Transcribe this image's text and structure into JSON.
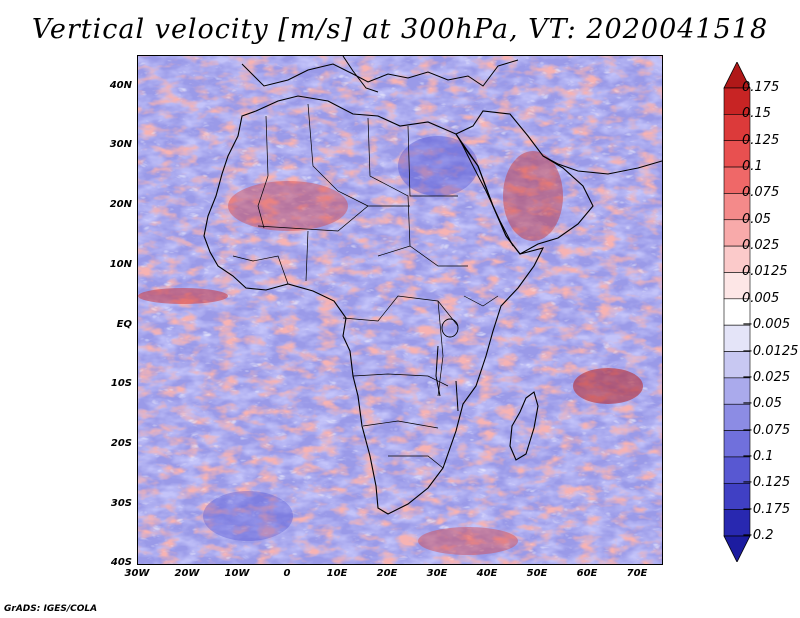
{
  "title": "Vertical velocity [m/s] at 300hPa, VT: 2020041518",
  "map": {
    "lat_labels": [
      "40N",
      "30N",
      "20N",
      "10N",
      "EQ",
      "10S",
      "20S",
      "30S",
      "40S"
    ],
    "lon_labels": [
      "30W",
      "20W",
      "10W",
      "0",
      "10E",
      "20E",
      "30E",
      "40E",
      "50E",
      "60E",
      "70E"
    ],
    "lat_range": [
      -40,
      44
    ],
    "lon_range": [
      -30,
      75
    ],
    "positive_color": "#d03030",
    "negative_color": "#5050d8",
    "coast_color": "#000000"
  },
  "colorbar": {
    "levels": [
      "0.175",
      "0.15",
      "0.125",
      "0.1",
      "0.075",
      "0.05",
      "0.025",
      "0.0125",
      "0.005",
      "−0.005",
      "−0.0125",
      "−0.025",
      "−0.05",
      "−0.075",
      "−0.1",
      "−0.125",
      "−0.175",
      "−0.2"
    ],
    "colors": [
      "#b01818",
      "#c82424",
      "#dc3a3a",
      "#e85050",
      "#ef6868",
      "#f48a8a",
      "#f8aaaa",
      "#fbcaca",
      "#fde6e6",
      "#ffffff",
      "#e4e4f8",
      "#c8c8f2",
      "#aaaaec",
      "#8c8ce4",
      "#7070dc",
      "#5858d2",
      "#4040c4",
      "#2828b0",
      "#1c1ca0"
    ]
  },
  "credit": "GrADS: IGES/COLA"
}
